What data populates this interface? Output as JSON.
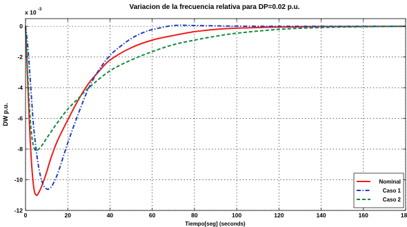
{
  "chart_data": {
    "type": "line",
    "title": "Variacion de la frecuencia relativa para DP=0.02 p.u.",
    "xlabel": "Tiempo[seg] (seconds)",
    "ylabel": "DW p.u.",
    "exponent_label": "x 10",
    "exponent_power": "-3",
    "xlim": [
      0,
      180
    ],
    "ylim": [
      -12,
      0.5
    ],
    "xticks": [
      0,
      20,
      40,
      60,
      80,
      100,
      120,
      140,
      160,
      180
    ],
    "yticks": [
      0,
      -2,
      -4,
      -6,
      -8,
      -10,
      -12
    ],
    "grid": true,
    "legend_position": "bottom-right",
    "series": [
      {
        "name": "Nominal",
        "color": "#ee1c1c",
        "dash": "solid",
        "x": [
          0,
          1,
          2,
          3,
          4,
          5,
          6,
          8,
          10,
          12,
          15,
          20,
          25,
          30,
          35,
          40,
          50,
          60,
          70,
          80,
          90,
          100,
          120,
          140,
          160,
          180
        ],
        "y": [
          0,
          -3.5,
          -6.8,
          -9.2,
          -10.6,
          -11.0,
          -10.9,
          -10.3,
          -9.5,
          -8.6,
          -7.5,
          -6.1,
          -4.8,
          -3.7,
          -2.9,
          -2.2,
          -1.4,
          -0.9,
          -0.6,
          -0.35,
          -0.2,
          -0.12,
          -0.05,
          -0.02,
          -0.01,
          0
        ]
      },
      {
        "name": "Caso 1",
        "color": "#1f3fbf",
        "dash": "dashdot",
        "x": [
          0,
          1,
          2,
          3,
          4,
          6,
          8,
          10,
          12,
          14,
          16,
          20,
          25,
          30,
          35,
          40,
          45,
          50,
          55,
          60,
          70,
          80,
          90,
          100,
          120,
          140,
          160,
          180
        ],
        "y": [
          0,
          -1.2,
          -3.0,
          -5.0,
          -6.8,
          -9.0,
          -10.2,
          -10.6,
          -10.5,
          -10.0,
          -9.3,
          -7.6,
          -5.7,
          -4.0,
          -2.8,
          -1.9,
          -1.3,
          -0.8,
          -0.45,
          -0.22,
          0.05,
          0.05,
          0.03,
          0.01,
          0,
          0,
          0,
          0
        ]
      },
      {
        "name": "Caso 2",
        "color": "#0f8a3c",
        "dash": "dashed",
        "x": [
          0,
          1,
          2,
          3,
          4,
          5,
          7,
          10,
          15,
          20,
          25,
          30,
          40,
          50,
          60,
          70,
          80,
          90,
          100,
          120,
          140,
          160,
          180
        ],
        "y": [
          0,
          -3.0,
          -5.6,
          -7.2,
          -7.9,
          -8.1,
          -7.9,
          -7.3,
          -6.3,
          -5.4,
          -4.7,
          -4.0,
          -2.9,
          -2.2,
          -1.65,
          -1.2,
          -0.9,
          -0.65,
          -0.45,
          -0.2,
          -0.08,
          -0.03,
          0
        ]
      }
    ]
  }
}
